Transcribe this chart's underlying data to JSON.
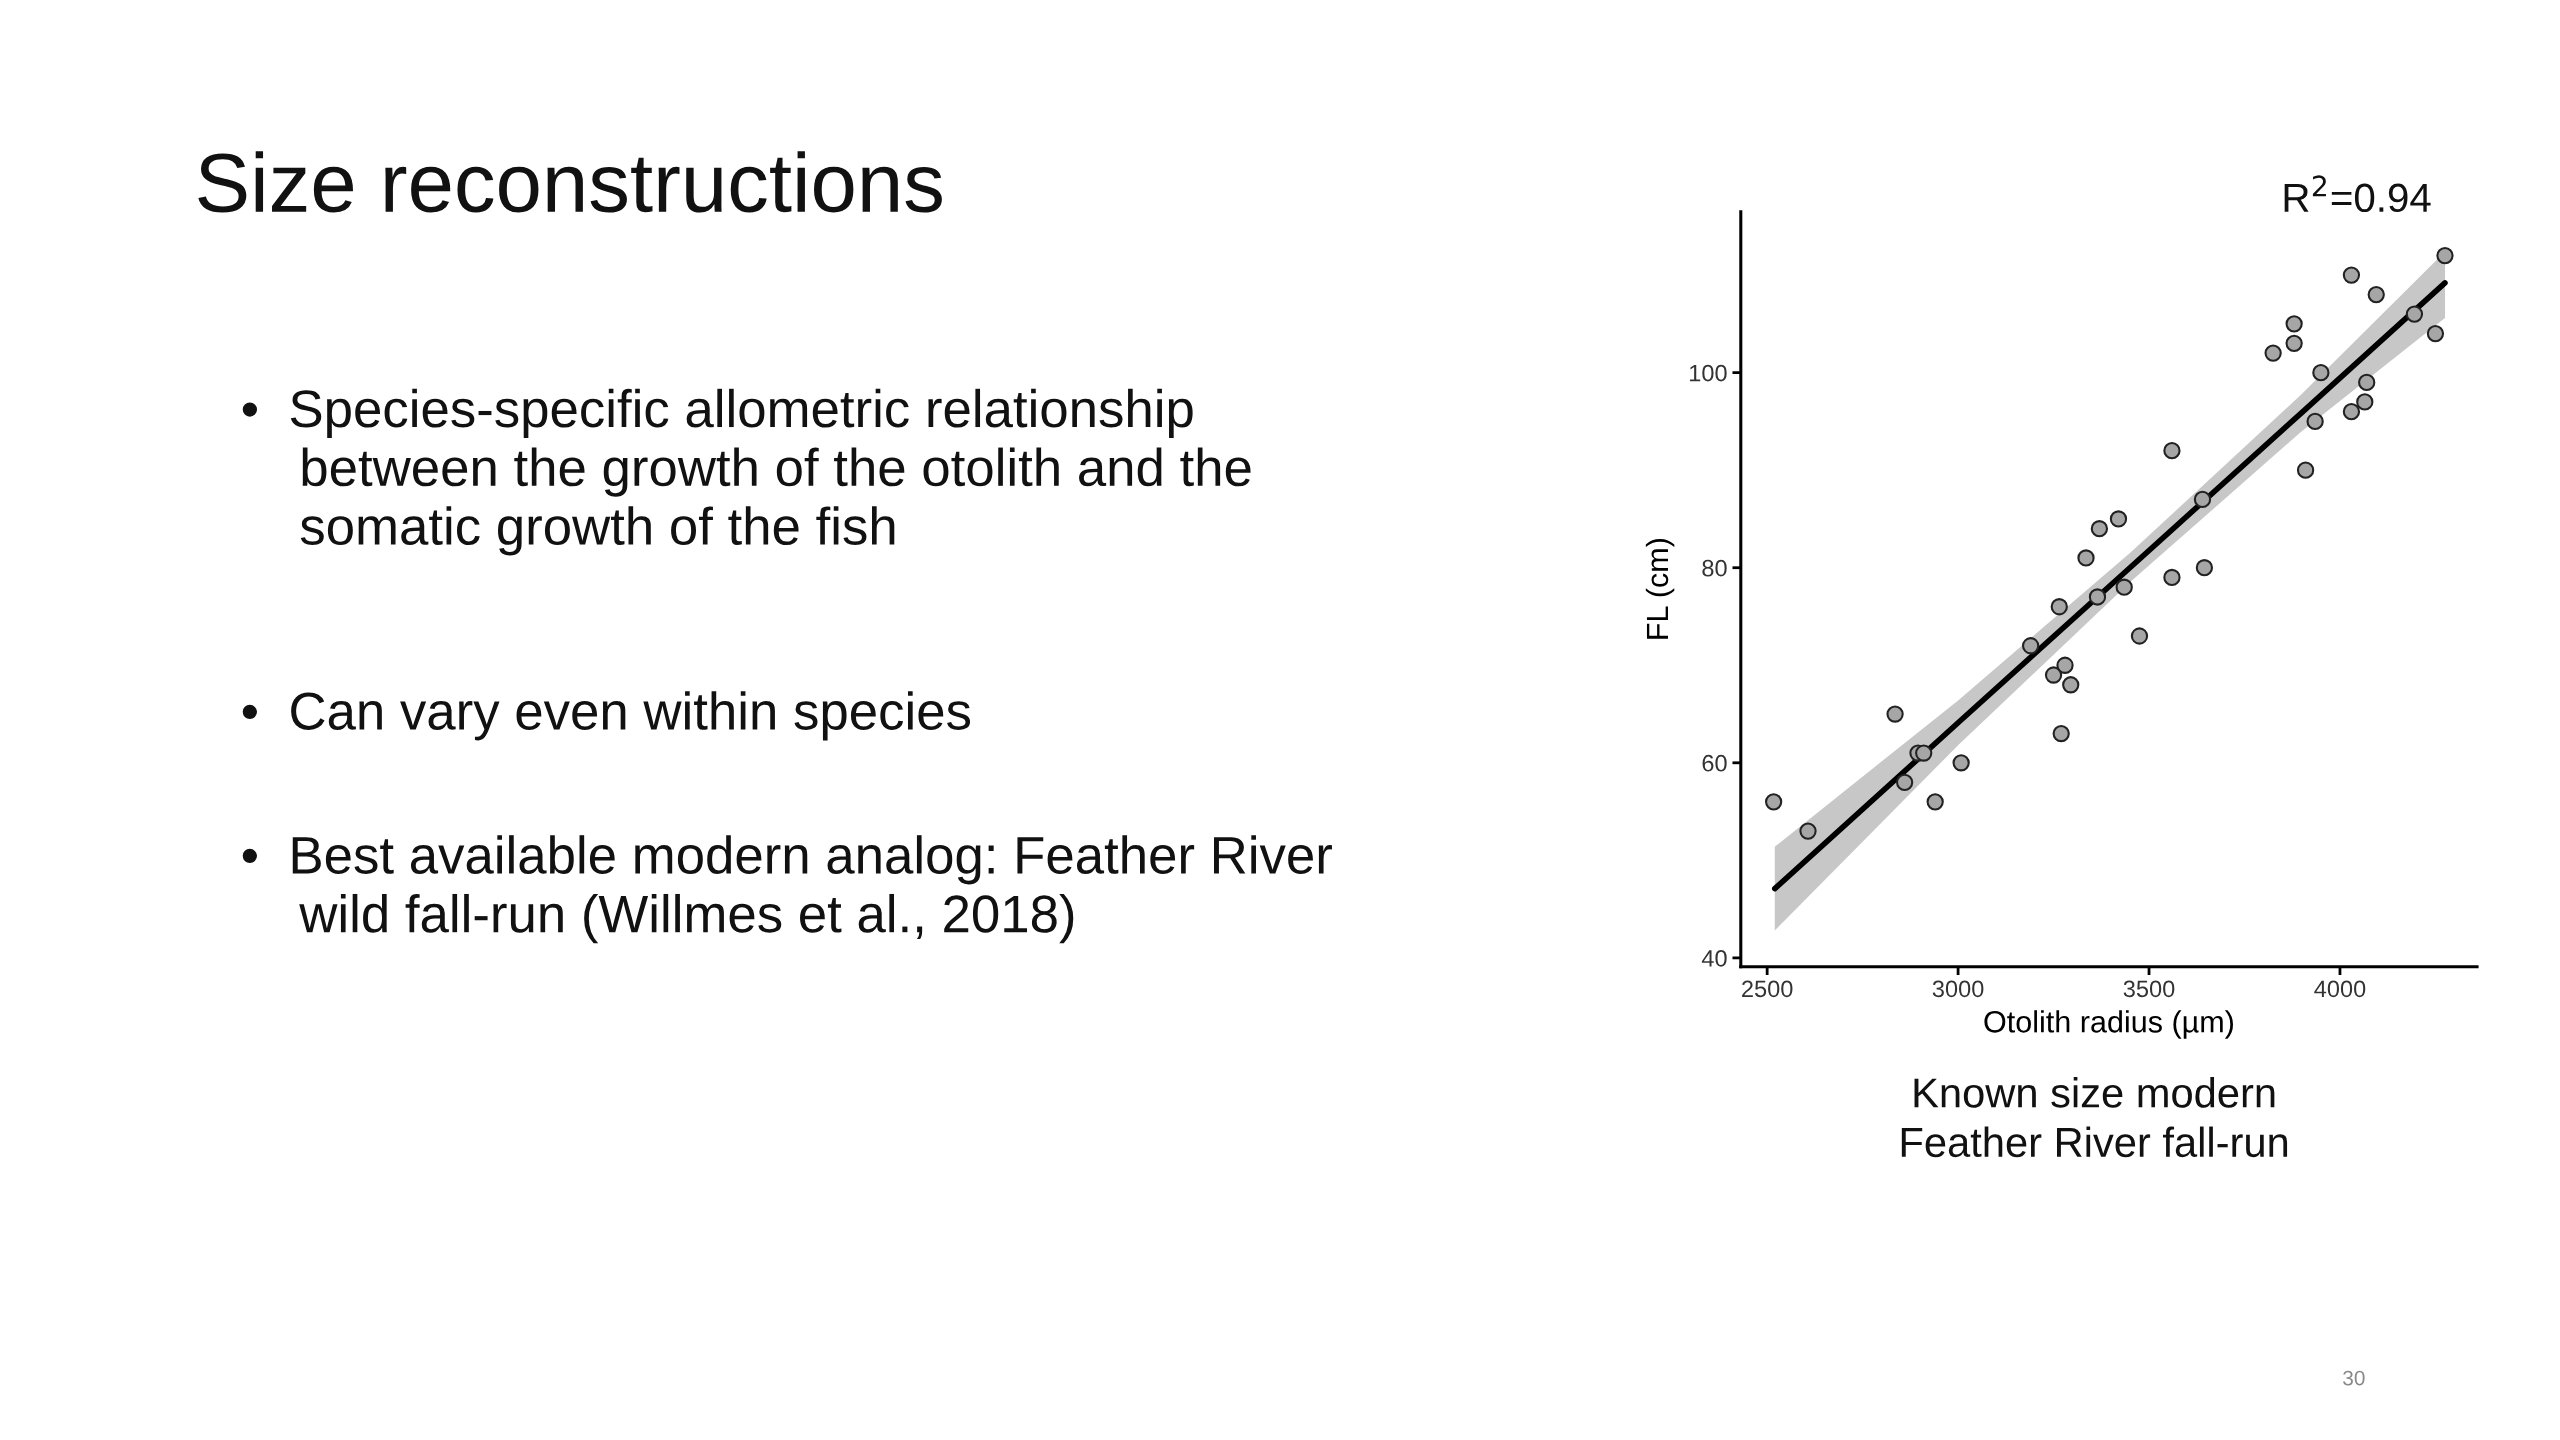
{
  "chart_data": {
    "type": "scatter",
    "title": "Size reconstructions",
    "xlabel": "Otolith radius (µm)",
    "ylabel": "FL (cm)",
    "xlim": [
      2431,
      4359
    ],
    "xticks": [
      2500,
      3000,
      3500,
      4000
    ],
    "ylim": [
      39.1,
      116.5
    ],
    "yticks": [
      40,
      60,
      80,
      100
    ],
    "grid": false,
    "marker": "circle",
    "annotations": [
      "R$^{2}$=0.94",
      "•  Species-specific allometric relationship\n    between the growth of the otolith and the\n    somatic growth of the fish",
      "•  Can vary even within species",
      "•  Best available modern analog: Feather River\n    wild fall-run (Willmes et al., 2018)",
      "Known size modern\nFeather River fall-run",
      "30"
    ],
    "series": [
      {
        "color": "#a6a6a6",
        "x": [
          2517,
          2607,
          2835,
          2860,
          2895,
          2910,
          2940,
          3008,
          3190,
          3250,
          3265,
          3270,
          3280,
          3295,
          3335,
          3370,
          3365,
          3420,
          3435,
          3475,
          3560,
          3560,
          3640,
          3645,
          3825,
          3880,
          3880,
          3910,
          3935,
          3950,
          4030,
          4030,
          4070,
          4065,
          4095,
          4195,
          4250,
          4275
        ],
        "values": [
          56,
          53,
          65,
          58,
          61,
          61,
          56,
          60,
          72,
          69,
          76,
          63,
          70,
          68,
          81,
          84,
          77,
          85,
          78,
          73,
          92,
          79,
          87,
          80,
          102,
          105,
          103,
          90,
          95,
          100,
          110,
          96,
          99,
          97,
          108,
          106,
          104,
          112
        ]
      },
      {
        "type": "line",
        "color": "#000000",
        "marker": "none",
        "x": [
          2520,
          3000,
          3450,
          3900,
          4275
        ],
        "values": [
          47.1,
          64.1,
          80.0,
          95.9,
          109.2
        ],
        "lower": [
          42.8,
          61.8,
          78.5,
          94.0,
          105.6
        ],
        "upper": [
          51.4,
          66.4,
          81.5,
          97.8,
          112.4
        ]
      }
    ]
  }
}
